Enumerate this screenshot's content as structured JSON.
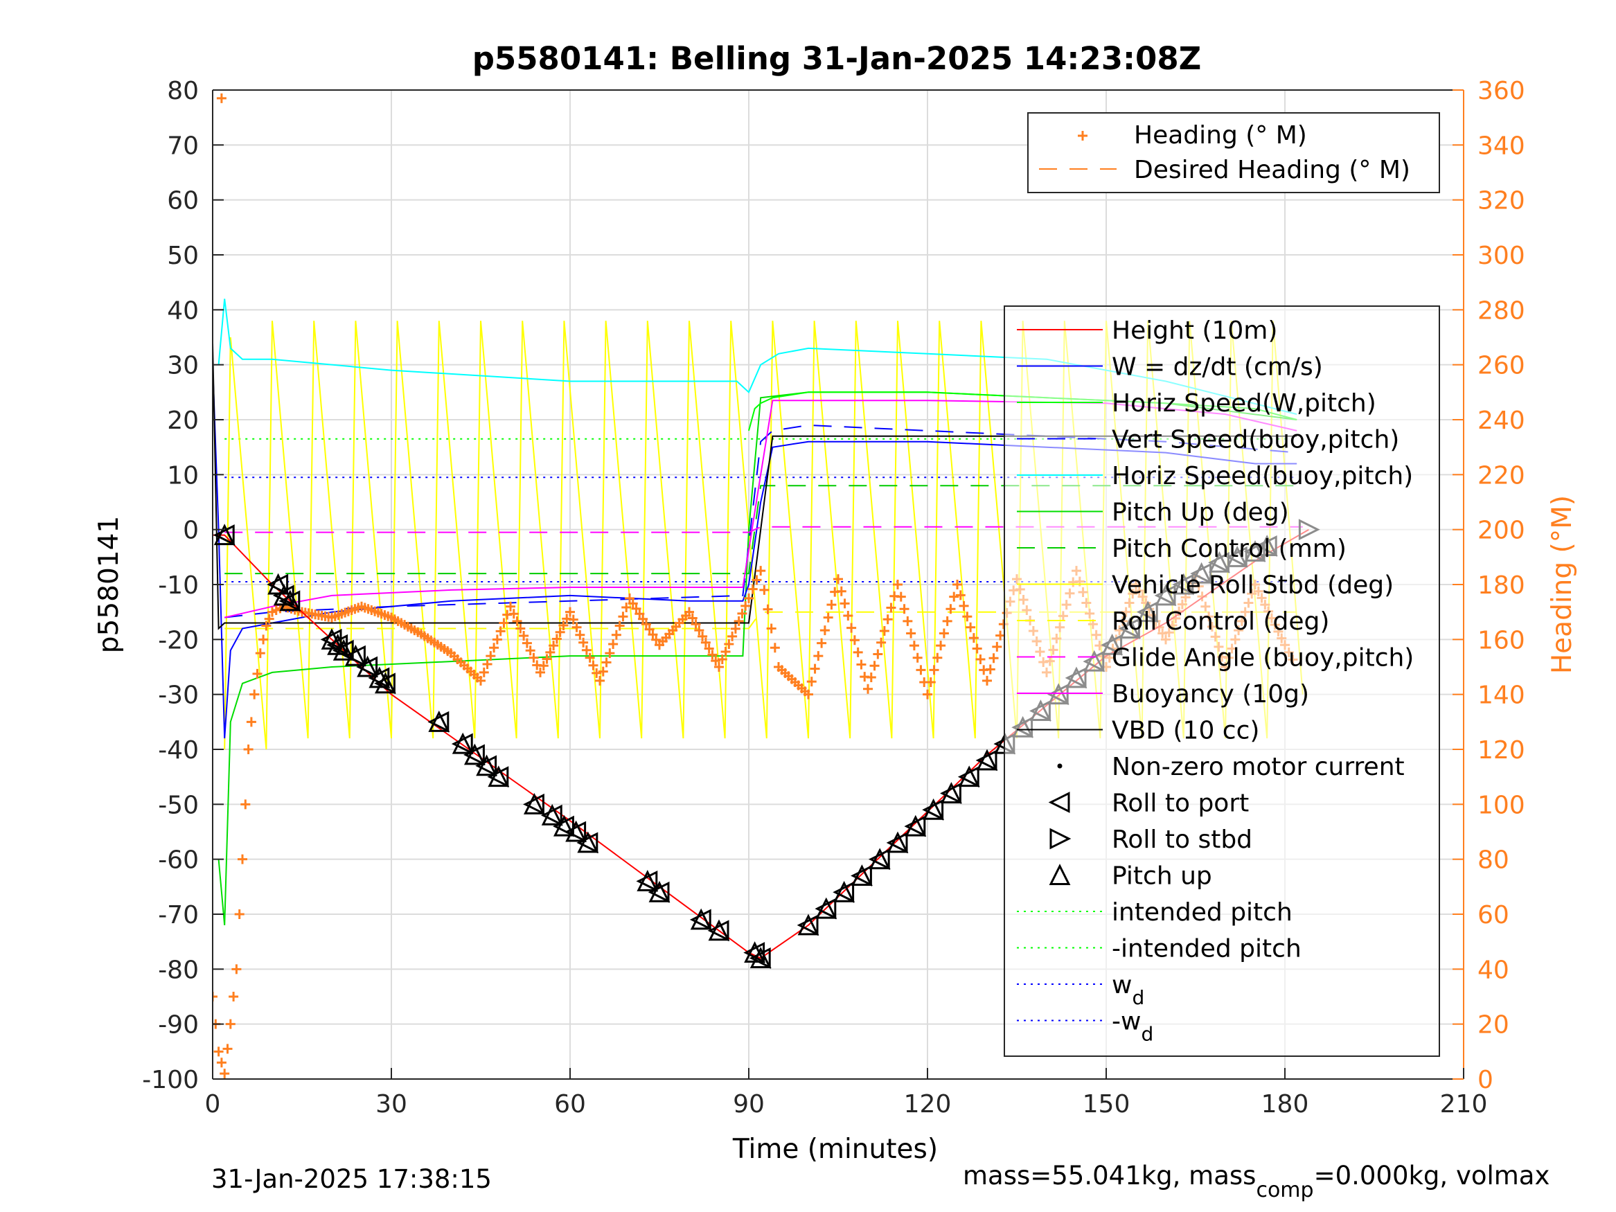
{
  "chart_data": {
    "type": "line",
    "title": "p5580141: Belling 31-Jan-2025 14:23:08Z",
    "xlabel": "Time (minutes)",
    "ylabel": "p5580141",
    "y2label": "Heading (°M)",
    "xlim": [
      0,
      210
    ],
    "ylim": [
      -100,
      80
    ],
    "y2lim": [
      0,
      360
    ],
    "xticks": [
      0,
      30,
      60,
      90,
      120,
      150,
      180,
      210
    ],
    "yticks": [
      80,
      70,
      60,
      50,
      40,
      30,
      20,
      10,
      0,
      -10,
      -20,
      -30,
      -40,
      -50,
      -60,
      -70,
      -80,
      -90,
      -100
    ],
    "y2ticks": [
      360,
      340,
      320,
      300,
      280,
      260,
      240,
      220,
      200,
      180,
      160,
      140,
      120,
      100,
      80,
      60,
      40,
      20,
      0
    ],
    "grid": true,
    "colors": {
      "heading": "#ff7f1f",
      "height": "#ff0000",
      "w": "#0000ff",
      "horiz_speed_w": "#00ff00",
      "vert_speed_buoy": "#0000ff",
      "horiz_speed_buoy": "#00ffff",
      "pitch_up": "#00dd00",
      "pitch_control": "#00cc00",
      "roll": "#ffff00",
      "glide_angle": "#ff00ff",
      "buoyancy": "#ff00ff",
      "vbd": "#000000",
      "w_d": "#0000ff",
      "intended_pitch": "#00ff00"
    },
    "legend_heading": {
      "placement": "top-right",
      "entries": [
        "Heading (° M)",
        "Desired Heading (° M)"
      ]
    },
    "legend_main": {
      "placement": "right",
      "entries": [
        "Height (10m)",
        "W = dz/dt (cm/s)",
        "Horiz Speed(W,pitch)",
        "Vert Speed(buoy,pitch)",
        "Horiz Speed(buoy,pitch)",
        "Pitch Up (deg)",
        "Pitch Control (mm)",
        "Vehicle Roll Stbd (deg)",
        "Roll Control (deg)",
        "Glide Angle (buoy,pitch)",
        "Buoyancy (10g)",
        "VBD (10 cc)",
        "Non-zero motor current",
        "Roll to port",
        "Roll to stbd",
        "Pitch up",
        "intended pitch",
        "-intended pitch",
        "w",
        "-w"
      ],
      "subscript": "d"
    },
    "series": [
      {
        "name": "Height (10m)",
        "axis": "left",
        "x": [
          0,
          2,
          10,
          30,
          60,
          75,
          90,
          92,
          100,
          130,
          150,
          160,
          176,
          184
        ],
        "y": [
          -1,
          -1,
          -10,
          -30,
          -53,
          -65,
          -77,
          -78,
          -72,
          -41,
          -23,
          -17,
          -5,
          0
        ]
      },
      {
        "name": "W = dz/dt (cm/s)",
        "axis": "left",
        "x": [
          0,
          1,
          2,
          3,
          5,
          10,
          20,
          40,
          60,
          80,
          89,
          90,
          92,
          94,
          100,
          120,
          140,
          160,
          175,
          182
        ],
        "y": [
          30,
          0,
          -38,
          -22,
          -18,
          -17,
          -15,
          -13,
          -12,
          -13,
          -13,
          -10,
          5,
          15,
          16,
          16,
          15,
          14,
          12,
          12
        ]
      },
      {
        "name": "Horiz Speed(W,pitch)",
        "axis": "left",
        "x": [
          90,
          91,
          92,
          94,
          100,
          120,
          140,
          160,
          175,
          182
        ],
        "y": [
          18,
          22,
          23,
          24,
          25,
          25,
          24,
          23,
          22,
          20
        ]
      },
      {
        "name": "Vert Speed(buoy,pitch)",
        "axis": "left",
        "x": [
          2,
          10,
          30,
          60,
          89,
          92,
          94,
          100,
          120,
          140,
          160,
          182
        ],
        "y": [
          -16,
          -15,
          -14,
          -13,
          -12,
          16,
          18,
          19,
          18,
          17,
          16,
          14
        ]
      },
      {
        "name": "Horiz Speed(buoy,pitch)",
        "axis": "left",
        "x": [
          1,
          2,
          3,
          5,
          10,
          30,
          60,
          88,
          90,
          92,
          95,
          100,
          120,
          140,
          160,
          182
        ],
        "y": [
          30,
          42,
          33,
          31,
          31,
          29,
          27,
          27,
          25,
          30,
          32,
          33,
          32,
          31,
          27,
          21
        ]
      },
      {
        "name": "Pitch Up (deg)",
        "axis": "left",
        "x": [
          1,
          2,
          3,
          5,
          10,
          20,
          40,
          60,
          80,
          89,
          90,
          92,
          100,
          120,
          140,
          160,
          182
        ],
        "y": [
          -60,
          -72,
          -35,
          -28,
          -26,
          -25,
          -24,
          -23,
          -23,
          -23,
          0,
          24,
          25,
          25,
          24,
          23,
          20
        ]
      },
      {
        "name": "Pitch Control (mm)",
        "axis": "left",
        "x": [
          2,
          90,
          92,
          182
        ],
        "y": [
          -8,
          -8,
          8,
          8
        ]
      },
      {
        "name": "Vehicle Roll Stbd (deg)",
        "axis": "left",
        "x": [
          2,
          3,
          9,
          10,
          16,
          17,
          23,
          24,
          30,
          31,
          37,
          38,
          44,
          45,
          51,
          52,
          58,
          59,
          65,
          66,
          72,
          73,
          79,
          80,
          86,
          87,
          93,
          94,
          100,
          101,
          107,
          108,
          114,
          115,
          121,
          122,
          128,
          129,
          135,
          136,
          142,
          143,
          149,
          150,
          156,
          157,
          163,
          164,
          170,
          171,
          177,
          178,
          183
        ],
        "y": [
          -40,
          35,
          -40,
          38,
          -38,
          38,
          -38,
          38,
          -38,
          38,
          -38,
          38,
          -38,
          38,
          -38,
          38,
          -38,
          38,
          -38,
          38,
          -38,
          38,
          -38,
          38,
          -38,
          38,
          -38,
          38,
          -38,
          38,
          -38,
          38,
          -38,
          38,
          -38,
          38,
          -38,
          38,
          -38,
          38,
          -38,
          38,
          -38,
          38,
          -38,
          38,
          -38,
          38,
          -38,
          38,
          -38,
          38,
          -30
        ]
      },
      {
        "name": "Roll Control (deg)",
        "axis": "left",
        "x": [
          2,
          90,
          92,
          182
        ],
        "y": [
          -18,
          -18,
          -15,
          -15
        ]
      },
      {
        "name": "Glide Angle (buoy,pitch)",
        "axis": "left",
        "x": [
          2,
          90,
          92,
          183
        ],
        "y": [
          -0.5,
          -0.5,
          0.5,
          0.5
        ]
      },
      {
        "name": "Buoyancy (10g)",
        "axis": "left",
        "x": [
          2,
          10,
          20,
          40,
          60,
          89,
          92,
          94,
          120,
          150,
          170,
          182
        ],
        "y": [
          -16,
          -14,
          -12,
          -11,
          -10.5,
          -10.5,
          10,
          23.5,
          23.5,
          23,
          21,
          18
        ]
      },
      {
        "name": "VBD (10 cc)",
        "axis": "left",
        "x": [
          0,
          1,
          2,
          89,
          90,
          94,
          182
        ],
        "y": [
          34,
          -18,
          -17,
          -17,
          -17,
          17,
          17
        ]
      },
      {
        "name": "Heading (° M)",
        "axis": "right",
        "x": [
          0,
          1,
          2,
          3,
          4,
          5,
          6,
          7,
          8,
          9,
          10,
          12,
          15,
          20,
          25,
          30,
          35,
          40,
          45,
          50,
          55,
          60,
          65,
          70,
          75,
          80,
          85,
          90,
          92,
          95,
          100,
          105,
          110,
          115,
          120,
          125,
          130,
          135,
          140,
          145,
          150,
          155,
          160,
          165,
          170,
          175,
          180,
          182
        ],
        "y": [
          30,
          10,
          2,
          20,
          40,
          80,
          120,
          140,
          155,
          165,
          170,
          172,
          170,
          168,
          172,
          168,
          162,
          155,
          145,
          172,
          148,
          170,
          145,
          175,
          158,
          170,
          150,
          175,
          185,
          150,
          140,
          182,
          142,
          180,
          140,
          180,
          145,
          182,
          148,
          185,
          150,
          180,
          160,
          183,
          150,
          180,
          158,
          150
        ]
      }
    ],
    "markers": {
      "roll_to_port": {
        "x": [
          2,
          11,
          12,
          13,
          20,
          21,
          22,
          24,
          26,
          28,
          29,
          38,
          42,
          44,
          46,
          48,
          54,
          57,
          59,
          61,
          63,
          73,
          75,
          82,
          85,
          91,
          92,
          100,
          103,
          106,
          109,
          112,
          115,
          118,
          121,
          124,
          127,
          130,
          133,
          136,
          139,
          142,
          145,
          148,
          151,
          154,
          157,
          160,
          163,
          166,
          169,
          172,
          175,
          177
        ],
        "y": [
          -1,
          -10,
          -12,
          -13,
          -20,
          -21,
          -22,
          -23,
          -25,
          -27,
          -28,
          -35,
          -39,
          -41,
          -43,
          -45,
          -50,
          -52,
          -54,
          -55,
          -57,
          -64,
          -66,
          -71,
          -73,
          -77,
          -78,
          -72,
          -69,
          -66,
          -63,
          -60,
          -57,
          -54,
          -51,
          -48,
          -45,
          -42,
          -39,
          -36,
          -33,
          -30,
          -27,
          -24,
          -21,
          -18,
          -15,
          -12,
          -10,
          -8,
          -6,
          -5,
          -4,
          -3
        ]
      },
      "roll_to_stbd": {
        "x": [
          184
        ],
        "y": [
          0
        ]
      }
    },
    "reference_lines": [
      {
        "name": "intended pitch",
        "axis": "left",
        "y": 16.5
      },
      {
        "name": "w_d",
        "axis": "left",
        "y": 9.5
      },
      {
        "name": "-w_d",
        "axis": "left",
        "y": -9.5
      }
    ]
  },
  "footer": {
    "timestamp": "31-Jan-2025 17:38:15",
    "mass_prefix": "mass=55.041kg, mass",
    "mass_subscript": "comp",
    "mass_suffix": "=0.000kg, volmax"
  }
}
